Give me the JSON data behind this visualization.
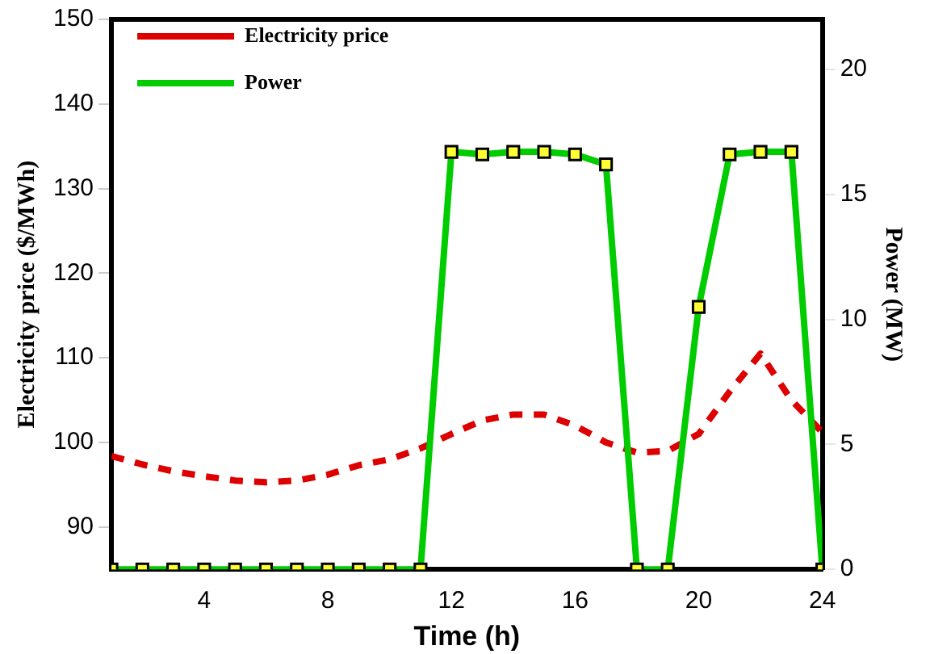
{
  "chart_data": {
    "type": "line",
    "xlabel": "Time (h)",
    "ylabel": "Electricity price ($/MWh)",
    "y2label": "Power (MW)",
    "x": [
      1,
      2,
      3,
      4,
      5,
      6,
      7,
      8,
      9,
      10,
      11,
      12,
      13,
      14,
      15,
      16,
      17,
      18,
      19,
      20,
      21,
      22,
      23,
      24
    ],
    "series": [
      {
        "name": "Electricity price",
        "color": "#dd0000",
        "line_style": "dashed",
        "marker": "none",
        "values": [
          98.4,
          97.4,
          96.6,
          96.0,
          95.5,
          95.3,
          95.5,
          96.2,
          97.3,
          98.0,
          99.3,
          101.0,
          102.6,
          103.3,
          103.3,
          102.0,
          100.0,
          98.8,
          99.0,
          101.0,
          106.0,
          110.5,
          105.0,
          101.2
        ]
      },
      {
        "name": "Power",
        "color": "#00cc00",
        "line_style": "solid",
        "marker": "square",
        "axis": "y2",
        "values": [
          0,
          0,
          0,
          0,
          0,
          0,
          0,
          0,
          0,
          0,
          0,
          16.7,
          16.6,
          16.7,
          16.7,
          16.6,
          16.2,
          0,
          0,
          10.5,
          16.6,
          16.7,
          16.7,
          0
        ]
      }
    ],
    "xlim": [
      1,
      24
    ],
    "xticks": [
      4,
      8,
      12,
      16,
      20,
      24
    ],
    "ylim": [
      85,
      150
    ],
    "yticks": [
      90,
      100,
      110,
      120,
      130,
      140,
      150
    ],
    "y2lim": [
      0,
      22
    ],
    "y2ticks": [
      0,
      5,
      10,
      15,
      20
    ],
    "grid": false,
    "legend": "top left"
  }
}
